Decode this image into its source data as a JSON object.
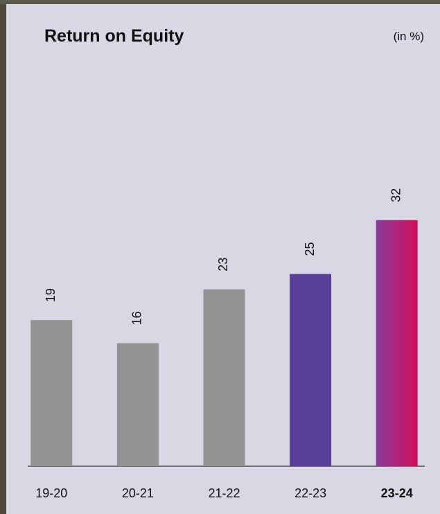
{
  "chart_data": {
    "type": "bar",
    "title": "Return on Equity",
    "unit_label": "(in %)",
    "categories": [
      "19-20",
      "20-21",
      "21-22",
      "22-23",
      "23-24"
    ],
    "values": [
      19,
      16,
      23,
      25,
      32
    ],
    "colors": [
      "#939393",
      "#939393",
      "#939393",
      "#5a3f98",
      [
        "#8a3a9c",
        "#d20f58"
      ]
    ],
    "value_label_colors": [
      "#222222",
      "#222222",
      "#222222",
      "#222222",
      "#b0287e"
    ],
    "bold_categories": [
      false,
      false,
      false,
      false,
      true
    ],
    "ylim": [
      0,
      40
    ]
  }
}
